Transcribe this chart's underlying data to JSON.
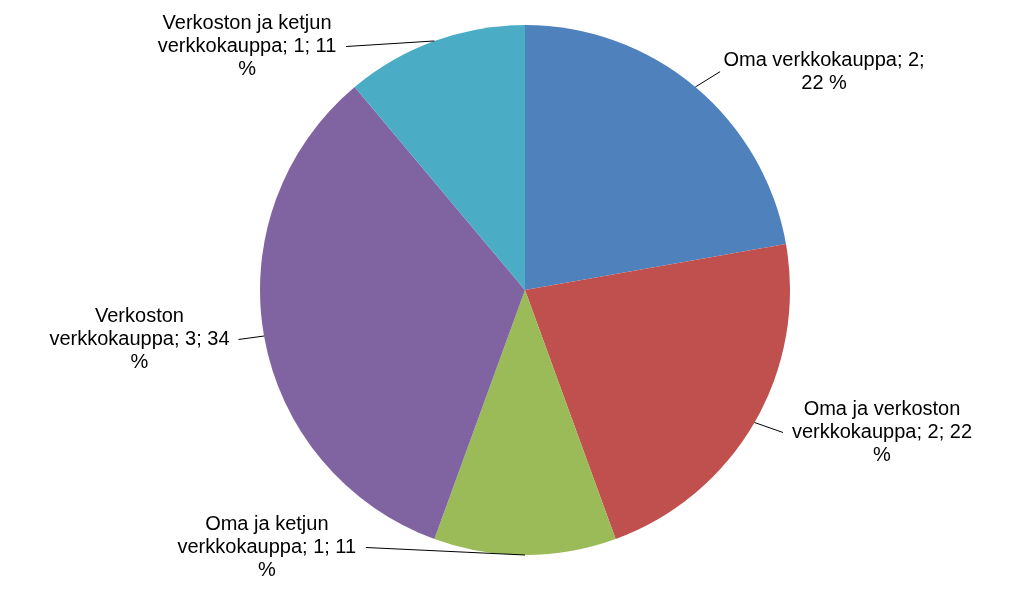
{
  "chart_data": {
    "type": "pie",
    "categories": [
      "Oma verkkokauppa",
      "Oma ja verkoston verkkokauppa",
      "Oma ja ketjun verkkokauppa",
      "Verkoston verkkokauppa",
      "Verkoston ja ketjun verkkokauppa"
    ],
    "values": [
      2,
      2,
      1,
      3,
      1
    ],
    "value_labels": [
      "2; 22 %",
      "2; 22 %",
      "1; 11 %",
      "3; 34 %",
      "1; 11 %"
    ],
    "colors": [
      "#4f81bd",
      "#c0504d",
      "#9bbb59",
      "#8064a2",
      "#4bacc6"
    ]
  }
}
